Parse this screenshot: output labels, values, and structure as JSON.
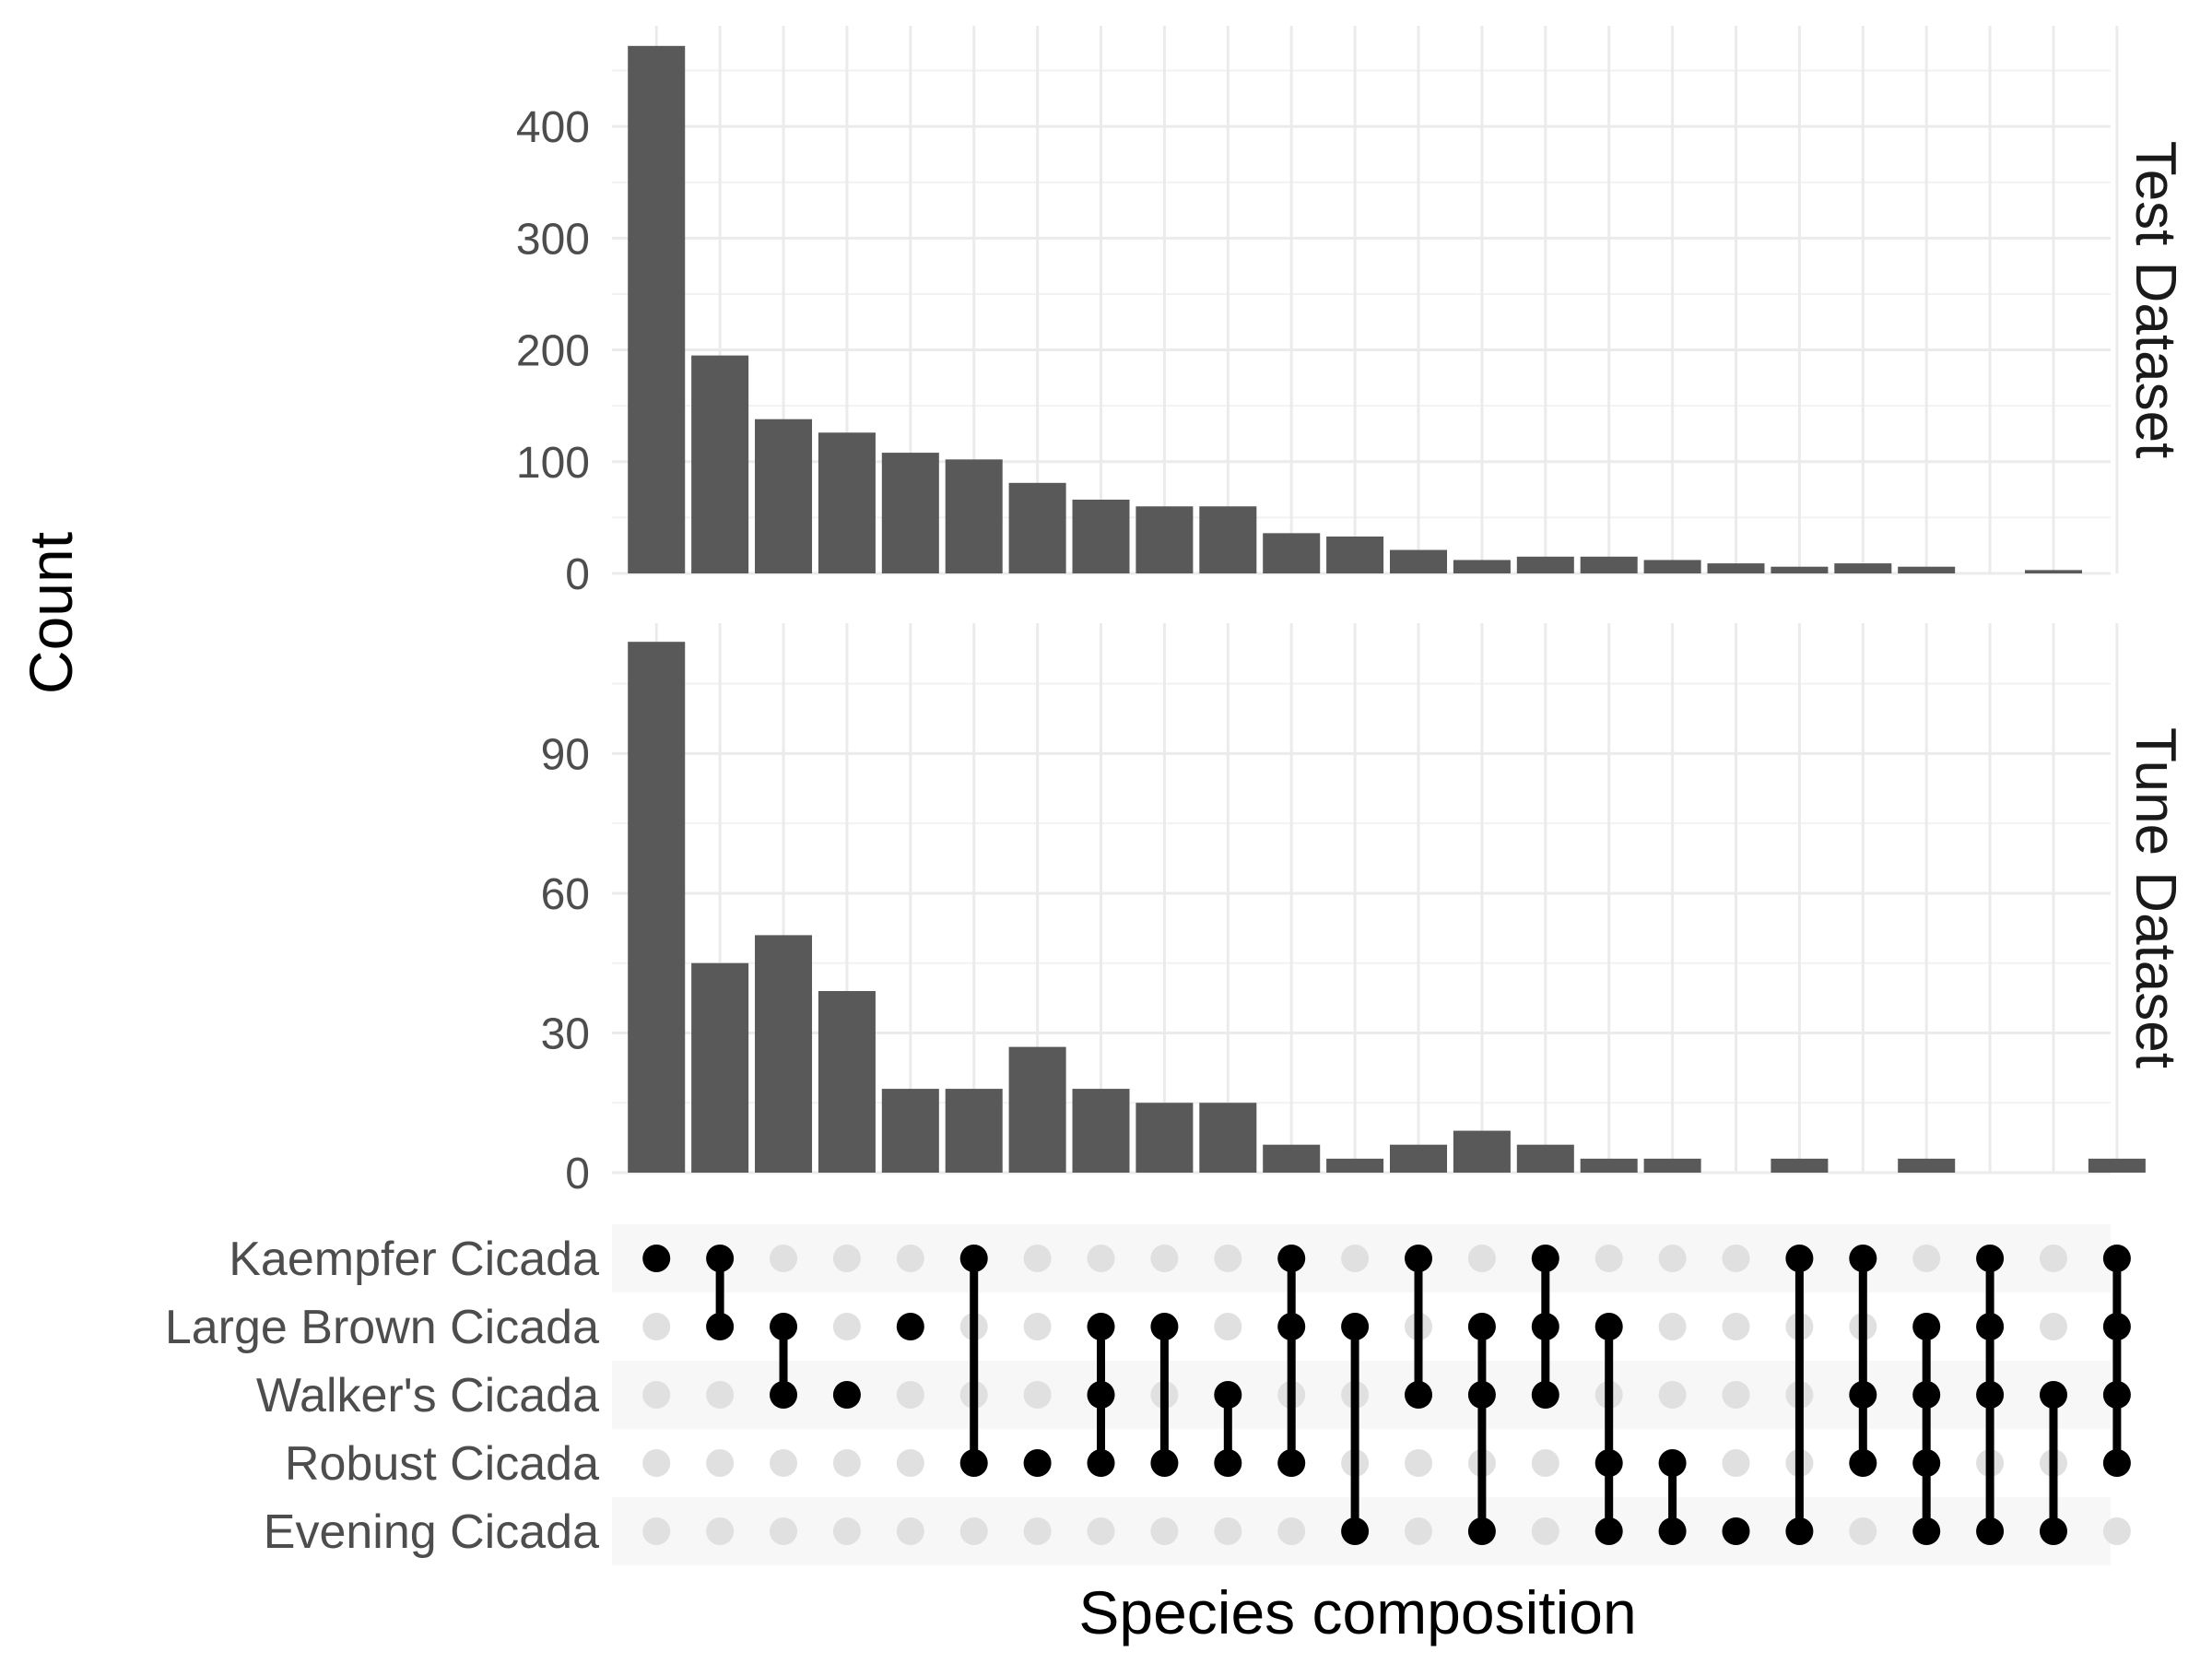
{
  "chart_data": {
    "type": "bar",
    "xlabel": "Species composition",
    "ylabel": "Count",
    "sets": [
      "Kaempfer Cicada",
      "Large Brown Cicada",
      "Walker's Cicada",
      "Robust Cicada",
      "Evening Cicada"
    ],
    "combinations": [
      [
        "Kaempfer Cicada"
      ],
      [
        "Kaempfer Cicada",
        "Large Brown Cicada"
      ],
      [
        "Large Brown Cicada",
        "Walker's Cicada"
      ],
      [
        "Walker's Cicada"
      ],
      [
        "Large Brown Cicada"
      ],
      [
        "Kaempfer Cicada",
        "Robust Cicada"
      ],
      [
        "Robust Cicada"
      ],
      [
        "Large Brown Cicada",
        "Walker's Cicada",
        "Robust Cicada"
      ],
      [
        "Large Brown Cicada",
        "Robust Cicada"
      ],
      [
        "Walker's Cicada",
        "Robust Cicada"
      ],
      [
        "Kaempfer Cicada",
        "Large Brown Cicada",
        "Robust Cicada"
      ],
      [
        "Large Brown Cicada",
        "Evening Cicada"
      ],
      [
        "Kaempfer Cicada",
        "Walker's Cicada"
      ],
      [
        "Large Brown Cicada",
        "Walker's Cicada",
        "Evening Cicada"
      ],
      [
        "Kaempfer Cicada",
        "Large Brown Cicada",
        "Walker's Cicada"
      ],
      [
        "Large Brown Cicada",
        "Robust Cicada",
        "Evening Cicada"
      ],
      [
        "Robust Cicada",
        "Evening Cicada"
      ],
      [
        "Evening Cicada"
      ],
      [
        "Kaempfer Cicada",
        "Evening Cicada"
      ],
      [
        "Kaempfer Cicada",
        "Walker's Cicada",
        "Robust Cicada"
      ],
      [
        "Large Brown Cicada",
        "Walker's Cicada",
        "Robust Cicada",
        "Evening Cicada"
      ],
      [
        "Kaempfer Cicada",
        "Large Brown Cicada",
        "Walker's Cicada",
        "Evening Cicada"
      ],
      [
        "Walker's Cicada",
        "Evening Cicada"
      ],
      [
        "Kaempfer Cicada",
        "Large Brown Cicada",
        "Walker's Cicada",
        "Robust Cicada"
      ]
    ],
    "series": [
      {
        "name": "Test Dataset",
        "values": [
          472,
          195,
          138,
          126,
          108,
          102,
          81,
          66,
          60,
          60,
          36,
          33,
          21,
          12,
          15,
          15,
          12,
          9,
          6,
          9,
          6,
          0,
          3,
          0
        ],
        "yticks": [
          0,
          100,
          200,
          300,
          400
        ],
        "ylim": [
          0,
          490
        ]
      },
      {
        "name": "Tune Dataset",
        "values": [
          114,
          45,
          51,
          39,
          18,
          18,
          27,
          18,
          15,
          15,
          6,
          3,
          6,
          9,
          6,
          3,
          3,
          0,
          3,
          0,
          3,
          0,
          0,
          3
        ],
        "yticks": [
          0,
          30,
          60,
          90
        ],
        "ylim": [
          0,
          118
        ]
      }
    ],
    "bar_color": "#595959",
    "dot_color": "#000000",
    "inactive_dot_color": "#e0e0e0",
    "grid": true
  }
}
